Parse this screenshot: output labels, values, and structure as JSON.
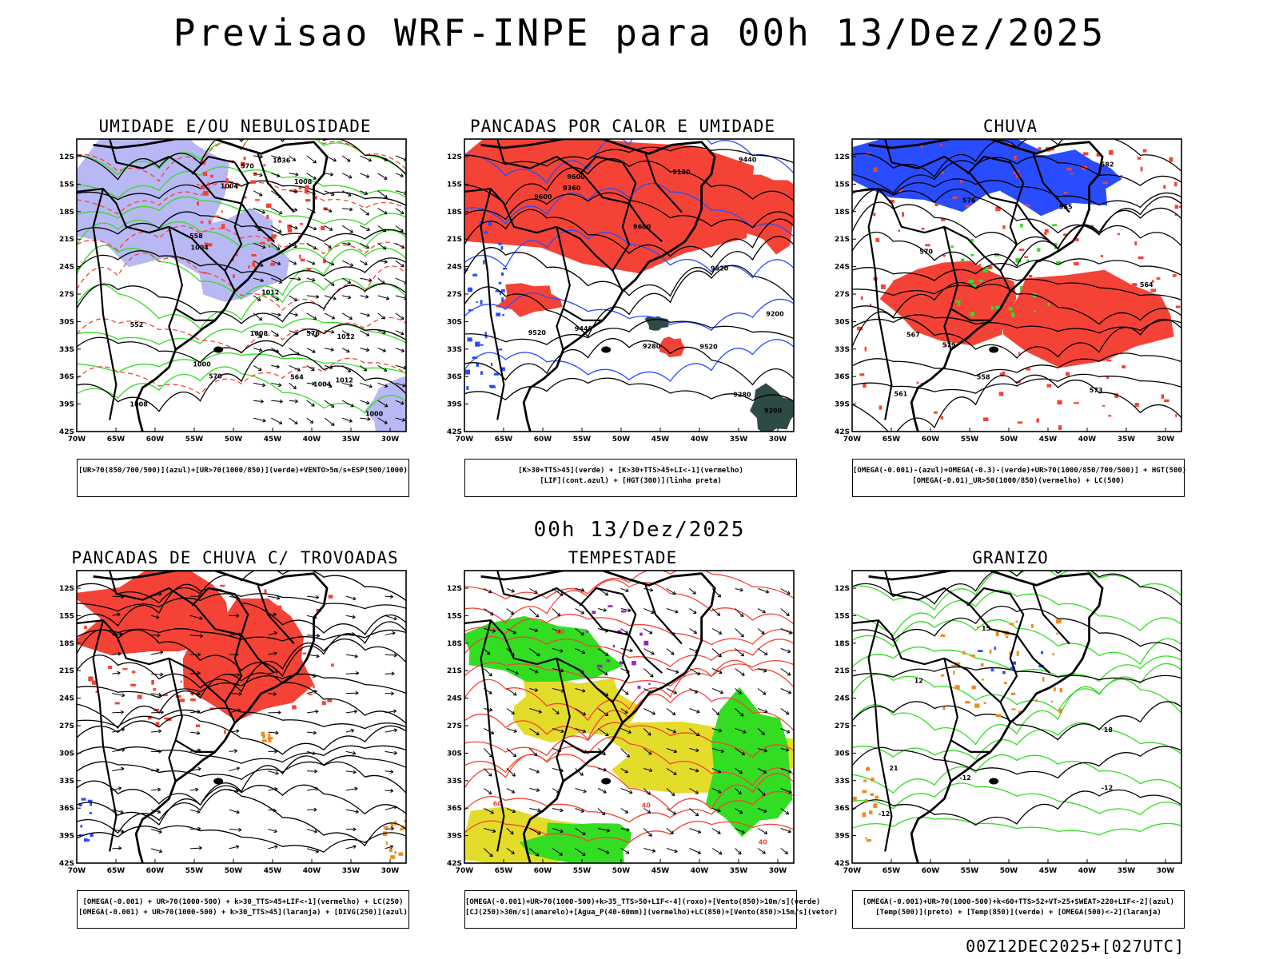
{
  "main_title": "Previsao WRF-INPE  para 00h 13/Dez/2025",
  "mid_title": "00h 13/Dez/2025",
  "footer": "00Z12DEC2025+[027UTC]",
  "axes": {
    "lat_labels": [
      "12S",
      "15S",
      "18S",
      "21S",
      "24S",
      "27S",
      "30S",
      "33S",
      "36S",
      "39S",
      "42S"
    ],
    "lon_labels": [
      "70W",
      "65W",
      "60W",
      "55W",
      "50W",
      "45W",
      "40W",
      "35W",
      "30W"
    ]
  },
  "colors": {
    "red": "#f44336",
    "blue": "#2a4cff",
    "green": "#33dd22",
    "lavender": "#b8b8f4",
    "yellow": "#e4dc2a",
    "orange": "#f08a1e",
    "darkteal": "#2e4a44",
    "purple": "#a020c0"
  },
  "panels": [
    {
      "title": "UMIDADE E/OU NEBULOSIDADE",
      "legend": [
        "[UR>70(850/700/500)](azul)+[UR>70(1000/850)](verde)+VENTO>5m/s+ESP(500/1000)"
      ],
      "contour_labels": [
        "1008",
        "1012",
        "1012",
        "1008",
        "1004",
        "1036",
        "1012",
        "1008",
        "1004",
        "1000",
        "1000",
        "1004",
        "570",
        "570",
        "564",
        "558",
        "576",
        "552"
      ]
    },
    {
      "title": "PANCADAS POR CALOR E UMIDADE",
      "legend": [
        "[K>30+TTS>45](verde) + [K>30+TTS>45+LI<-1](vermelho)",
        "[LIF](cont.azul) + [HGT(300)](linha preta)"
      ],
      "contour_labels": [
        "9520",
        "9600",
        "9600",
        "9600",
        "9440",
        "9520",
        "9520",
        "9440",
        "9360",
        "9280",
        "9280",
        "9200",
        "9200",
        "9120"
      ]
    },
    {
      "title": "CHUVA",
      "legend": [
        "[OMEGA(-0.001)-(azul)+OMEGA(-0.3)-(verde)+UR>70(1000/850/700/500)] + HGT(500)",
        "[OMEGA(-0.01)_UR>50(1000/850)(vermelho) + LC(500)"
      ],
      "contour_labels": [
        "582",
        "579",
        "576",
        "573",
        "570",
        "567",
        "564",
        "561",
        "558",
        "555"
      ]
    },
    {
      "title": "PANCADAS DE CHUVA C/ TROVOADAS",
      "legend": [
        "[OMEGA(-0.001) + UR>70(1000-500) + k>30_TTS>45+LIF<-1](vermelho) + LC(250)",
        "[OMEGA(-0.001) + UR>70(1000-500) + k>30_TTS>45](laranja) + [DIVG(250)](azul)"
      ],
      "contour_labels": []
    },
    {
      "title": "TEMPESTADE",
      "legend": [
        "[OMEGA(-0.001)+UR>70(1000-500)+k>35_TTS>50+LIF<-4](roxo)+[Vento(850)>10m/s](verde)",
        "[CJ(250)>30m/s](amarelo)+[Agua_P(40-60mm)](vermelho)+LC(850)+[Vento(850)>15m/s](vetor)"
      ],
      "contour_labels": [
        "40",
        "40",
        "40",
        "60"
      ]
    },
    {
      "title": "GRANIZO",
      "legend": [
        "[OMEGA(-0.001)+UR>70(1000-500)+k<60+TTS>52+VT>25+SWEAT>220+LIF<-2](azul)",
        "[Temp(500)](preto) + [Temp(850)](verde) + [OMEGA(500)<-2](laranja)"
      ],
      "contour_labels": [
        "-12",
        "-12",
        "-12",
        "15",
        "12",
        "18",
        "21"
      ]
    }
  ]
}
